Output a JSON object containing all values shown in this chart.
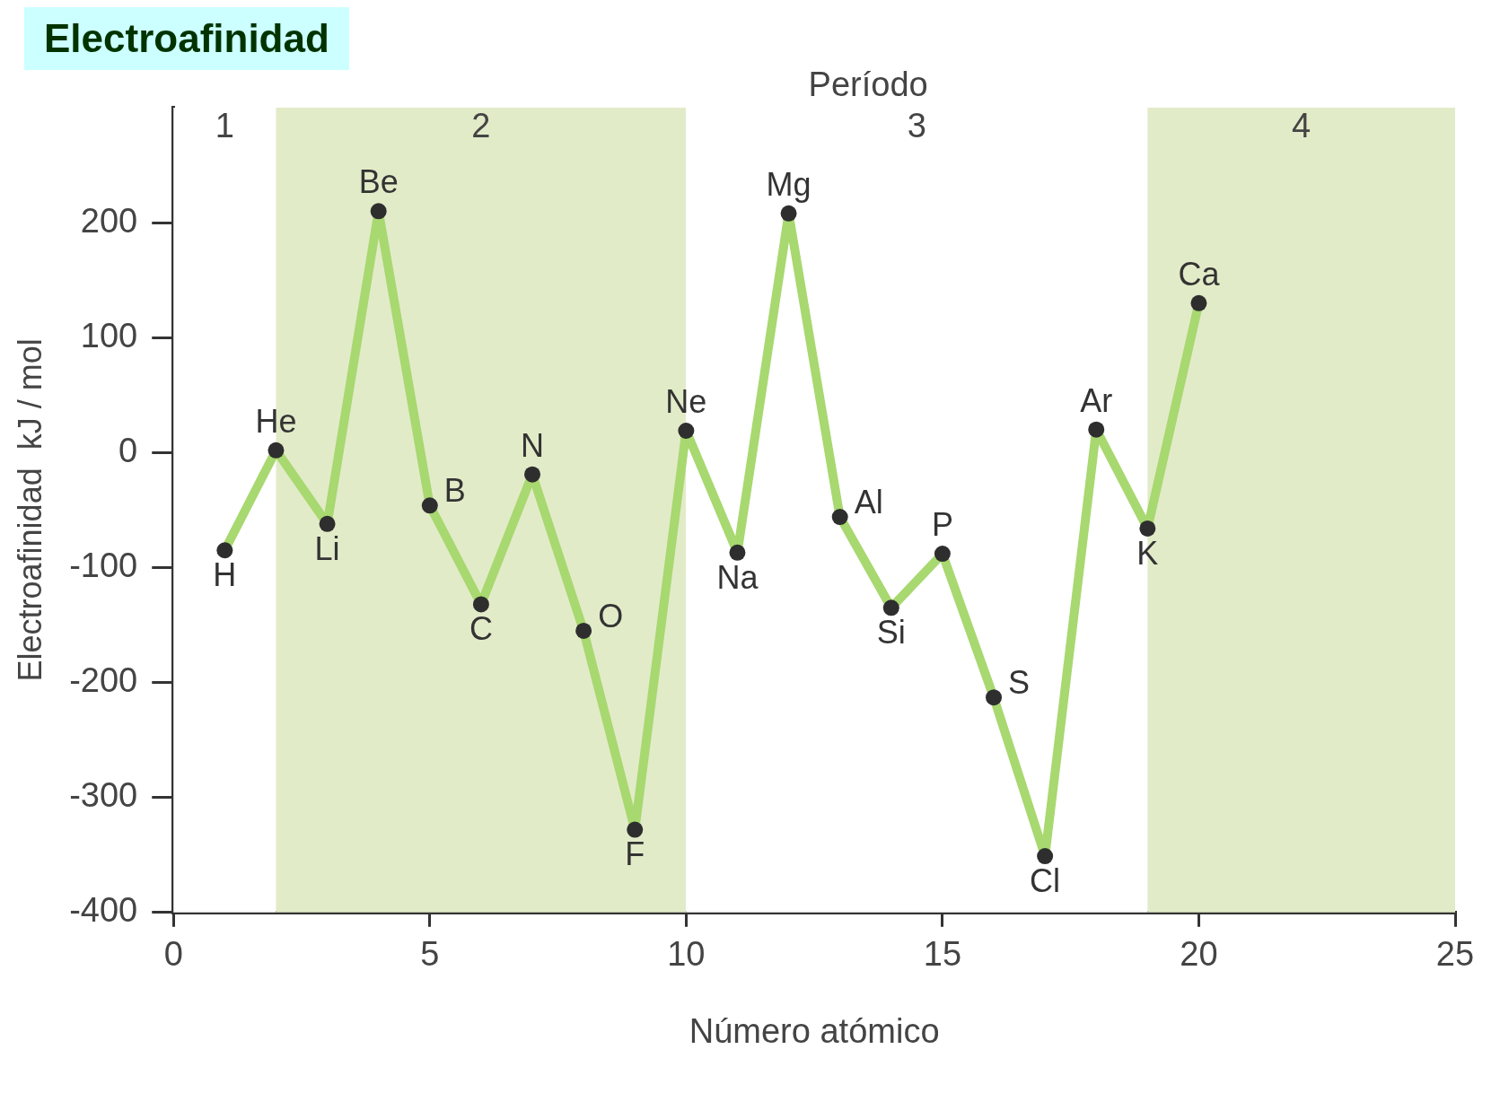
{
  "chart_data": {
    "type": "line",
    "title": "Electroafinidad",
    "xlabel": "Número atómico",
    "ylabel": "Electroafinidad  kJ / mol",
    "x2label": "Período",
    "x": [
      1,
      2,
      3,
      4,
      5,
      6,
      7,
      8,
      9,
      10,
      11,
      12,
      13,
      14,
      15,
      16,
      17,
      18,
      19,
      20
    ],
    "series": [
      {
        "color": "#a8d870",
        "values": [
          -85,
          2,
          -62,
          210,
          -46,
          -132,
          -19,
          -155,
          -328,
          19,
          -87,
          208,
          -56,
          -135,
          -88,
          -213,
          -351,
          20,
          -66,
          130
        ]
      }
    ],
    "marker": "circle",
    "line_style": "solid",
    "grid": false,
    "legend": false,
    "xlim": [
      0,
      25
    ],
    "xticks": [
      0,
      5,
      10,
      15,
      20,
      25
    ],
    "ylim": [
      -400,
      300
    ],
    "yticks": [
      -400,
      -300,
      -200,
      -100,
      0,
      100,
      200
    ],
    "bands": [
      {
        "axis": "x",
        "from": 0,
        "to": 2,
        "label": "1",
        "color": "#ffffff"
      },
      {
        "axis": "x",
        "from": 2,
        "to": 10,
        "label": "2",
        "color": "#e2ebc8"
      },
      {
        "axis": "x",
        "from": 10,
        "to": 19,
        "label": "3",
        "color": "#ffffff"
      },
      {
        "axis": "x",
        "from": 19,
        "to": 25,
        "label": "4",
        "color": "#e2ebc8"
      }
    ],
    "annotations": [
      {
        "text": "H",
        "x": 1,
        "y": -85
      },
      {
        "text": "He",
        "x": 2,
        "y": 2
      },
      {
        "text": "Li",
        "x": 3,
        "y": -62
      },
      {
        "text": "Be",
        "x": 4,
        "y": 210
      },
      {
        "text": "B",
        "x": 5,
        "y": -46
      },
      {
        "text": "C",
        "x": 6,
        "y": -132
      },
      {
        "text": "N",
        "x": 7,
        "y": -19
      },
      {
        "text": "O",
        "x": 8,
        "y": -155
      },
      {
        "text": "F",
        "x": 9,
        "y": -328
      },
      {
        "text": "Ne",
        "x": 10,
        "y": 19
      },
      {
        "text": "Na",
        "x": 11,
        "y": -87
      },
      {
        "text": "Mg",
        "x": 12,
        "y": 208
      },
      {
        "text": "Al",
        "x": 13,
        "y": -56
      },
      {
        "text": "Si",
        "x": 14,
        "y": -135
      },
      {
        "text": "P",
        "x": 15,
        "y": -88
      },
      {
        "text": "S",
        "x": 16,
        "y": -213
      },
      {
        "text": "Cl",
        "x": 17,
        "y": -351
      },
      {
        "text": "Ar",
        "x": 18,
        "y": 20
      },
      {
        "text": "K",
        "x": 19,
        "y": -66
      },
      {
        "text": "Ca",
        "x": 20,
        "y": 130
      }
    ]
  }
}
